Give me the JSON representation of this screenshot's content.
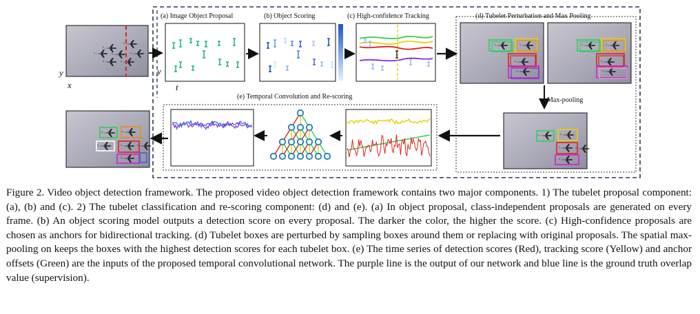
{
  "figure": {
    "panels": {
      "a": "(a) Image Object Proposal",
      "b": "(b) Object Scoring",
      "c": "(c) High-confidence Tracking",
      "d": "(d) Tubelet Perturbation and Max Pooling",
      "e": "(e) Temporal Convolution and Re-scoring"
    },
    "max_pooling_label": "Max-pooling",
    "axis": {
      "y1": "y",
      "x1": "x",
      "y2": "y",
      "t": "t"
    },
    "colors": {
      "proposal": "#1fb88a",
      "score_dark": "#1a56c8",
      "score_light": "#d9e8fb",
      "red": "#e02020",
      "yellow": "#e8d000",
      "green": "#2ecf5a",
      "purple": "#8a2be2",
      "blue": "#2f5fe0",
      "magenta": "#d020d0",
      "orange": "#f08a10"
    },
    "icons": [
      "plane-icon"
    ]
  },
  "caption": {
    "text": "Figure 2. Video object detection framework. The proposed video object detection framework contains two major components. 1) The tubelet proposal component: (a), (b) and (c). 2) The tubelet classification and re-scoring component: (d) and (e). (a) In object proposal, class-independent proposals are generated on every frame. (b) An object scoring model outputs a detection score on every proposal. The darker the color, the higher the score. (c) High-confidence proposals are chosen as anchors for bidirectional tracking. (d) Tubelet boxes are perturbed by sampling boxes around them or replacing with original proposals. The spatial max-pooling on keeps the boxes with the highest detection scores for each tubelet box. (e) The time series of detection scores (Red), tracking score (Yellow) and anchor offsets (Green) are the inputs of the proposed temporal convolutional network. The purple line is the output of our network and blue line is the ground truth overlap value (supervision)."
  }
}
